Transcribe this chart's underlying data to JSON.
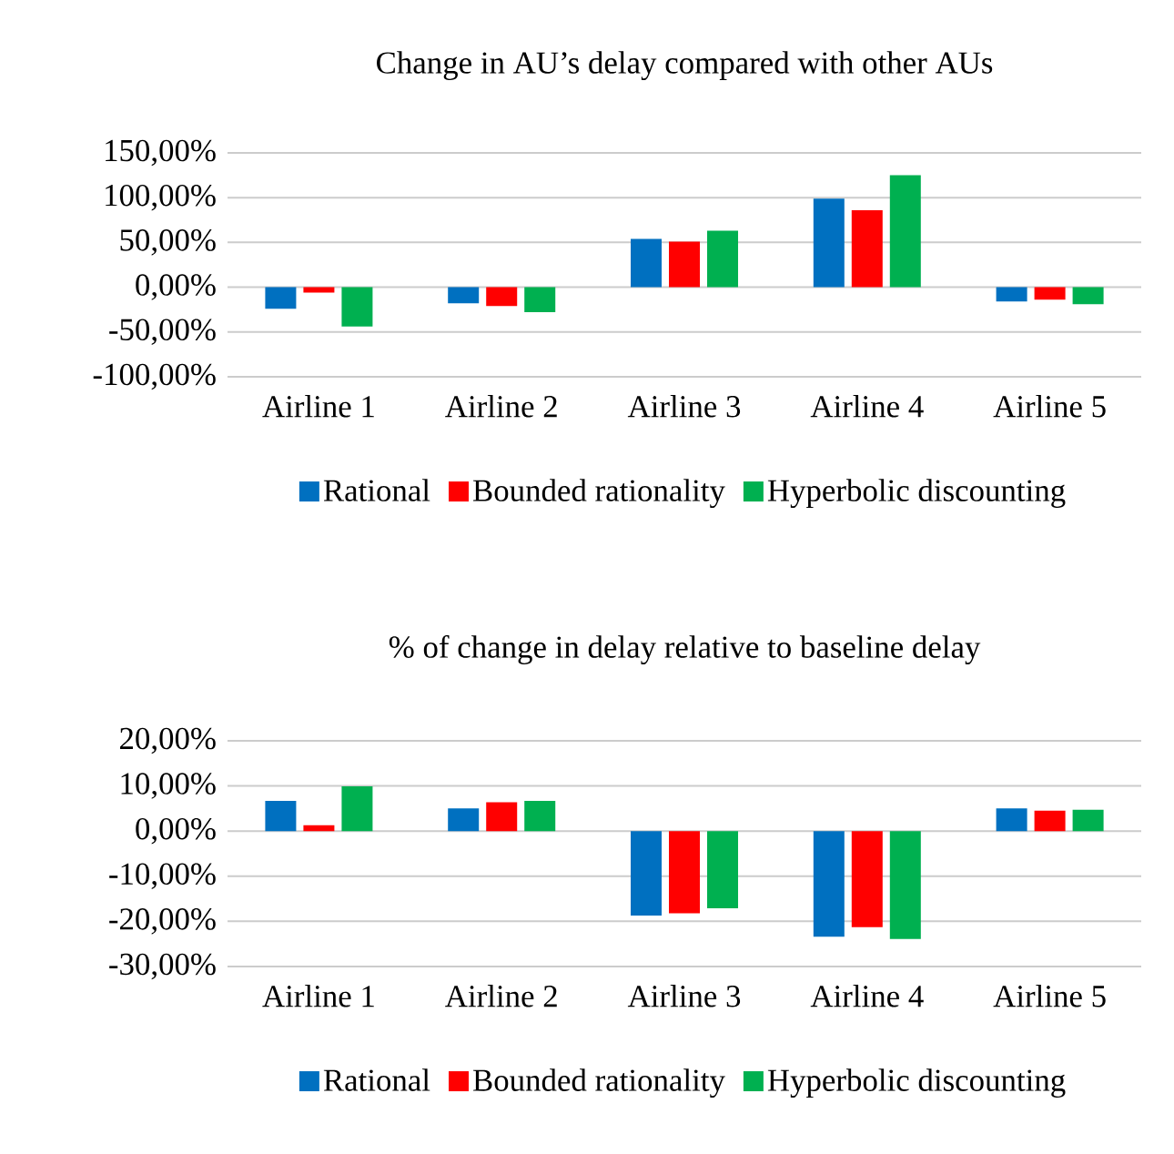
{
  "chart_data": [
    {
      "type": "bar",
      "title": "Change in AU’s delay compared with other AUs",
      "categories": [
        "Airline 1",
        "Airline 2",
        "Airline 3",
        "Airline 4",
        "Airline 5"
      ],
      "series": [
        {
          "name": "Rational",
          "color": "#0070c0",
          "values": [
            -24,
            -18,
            54,
            99,
            -16
          ]
        },
        {
          "name": "Bounded rationality",
          "color": "#ff0000",
          "values": [
            -6,
            -21,
            51,
            86,
            -14
          ]
        },
        {
          "name": "Hyperbolic discounting",
          "color": "#00b050",
          "values": [
            -44,
            -28,
            63,
            125,
            -19
          ]
        }
      ],
      "ylim": [
        -100,
        150
      ],
      "yticks": [
        {
          "value": -100,
          "label": "-100,00%"
        },
        {
          "value": -50,
          "label": "-50,00%"
        },
        {
          "value": 0,
          "label": "0,00%"
        },
        {
          "value": 50,
          "label": "50,00%"
        },
        {
          "value": 100,
          "label": "100,00%"
        },
        {
          "value": 150,
          "label": "150,00%"
        }
      ],
      "grid": "y",
      "legend": "bottom"
    },
    {
      "type": "bar",
      "title": "% of change in delay relative to baseline delay",
      "categories": [
        "Airline 1",
        "Airline 2",
        "Airline 3",
        "Airline 4",
        "Airline 5"
      ],
      "series": [
        {
          "name": "Rational",
          "color": "#0070c0",
          "values": [
            6.7,
            5.0,
            -18.7,
            -23.4,
            5.0
          ]
        },
        {
          "name": "Bounded rationality",
          "color": "#ff0000",
          "values": [
            1.3,
            6.4,
            -18.2,
            -21.3,
            4.5
          ]
        },
        {
          "name": "Hyperbolic discounting",
          "color": "#00b050",
          "values": [
            9.9,
            6.7,
            -17.1,
            -23.9,
            4.7
          ]
        }
      ],
      "ylim": [
        -30,
        20
      ],
      "yticks": [
        {
          "value": -30,
          "label": "-30,00%"
        },
        {
          "value": -20,
          "label": "-20,00%"
        },
        {
          "value": -10,
          "label": "-10,00%"
        },
        {
          "value": 0,
          "label": "0,00%"
        },
        {
          "value": 10,
          "label": "10,00%"
        },
        {
          "value": 20,
          "label": "20,00%"
        }
      ],
      "grid": "y",
      "legend": "bottom"
    }
  ]
}
